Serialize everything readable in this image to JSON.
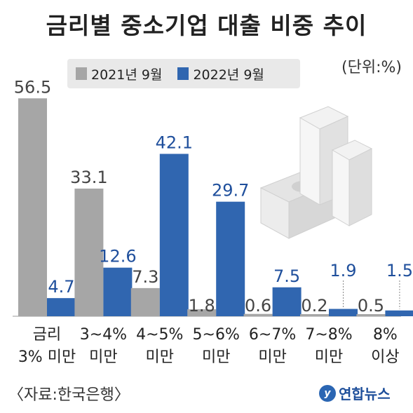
{
  "title": "금리별 중소기업 대출 비중 추이",
  "unit": "(단위:%)",
  "source": "〈자료:한국은행〉",
  "logo": {
    "text": "연합뉴스"
  },
  "colors": {
    "series_2021": "#a6a6a6",
    "series_2022": "#3066b0"
  },
  "chart_data": {
    "type": "bar",
    "title": "금리별 중소기업 대출 비중 추이",
    "categories": [
      [
        "금리",
        "3% 미만"
      ],
      [
        "3~4%",
        "미만"
      ],
      [
        "4~5%",
        "미만"
      ],
      [
        "5~6%",
        "미만"
      ],
      [
        "6~7%",
        "미만"
      ],
      [
        "7~8%",
        "미만"
      ],
      [
        "8%",
        "이상"
      ]
    ],
    "series": [
      {
        "name": "2021년 9월",
        "values": [
          56.5,
          33.1,
          7.3,
          1.8,
          0.6,
          0.2,
          0.5
        ]
      },
      {
        "name": "2022년 9월",
        "values": [
          4.7,
          12.6,
          42.1,
          29.7,
          7.5,
          1.9,
          1.5
        ]
      }
    ],
    "value_labels": [
      [
        "56.5",
        "33.1",
        "7.3",
        "1.8",
        "0.6",
        "0.2",
        "0.5"
      ],
      [
        "4.7",
        "12.6",
        "42.1",
        "29.7",
        "7.5",
        "1.9",
        "1.5"
      ]
    ],
    "legend_position": "top",
    "ylim": [
      0,
      60
    ],
    "grid": false
  }
}
